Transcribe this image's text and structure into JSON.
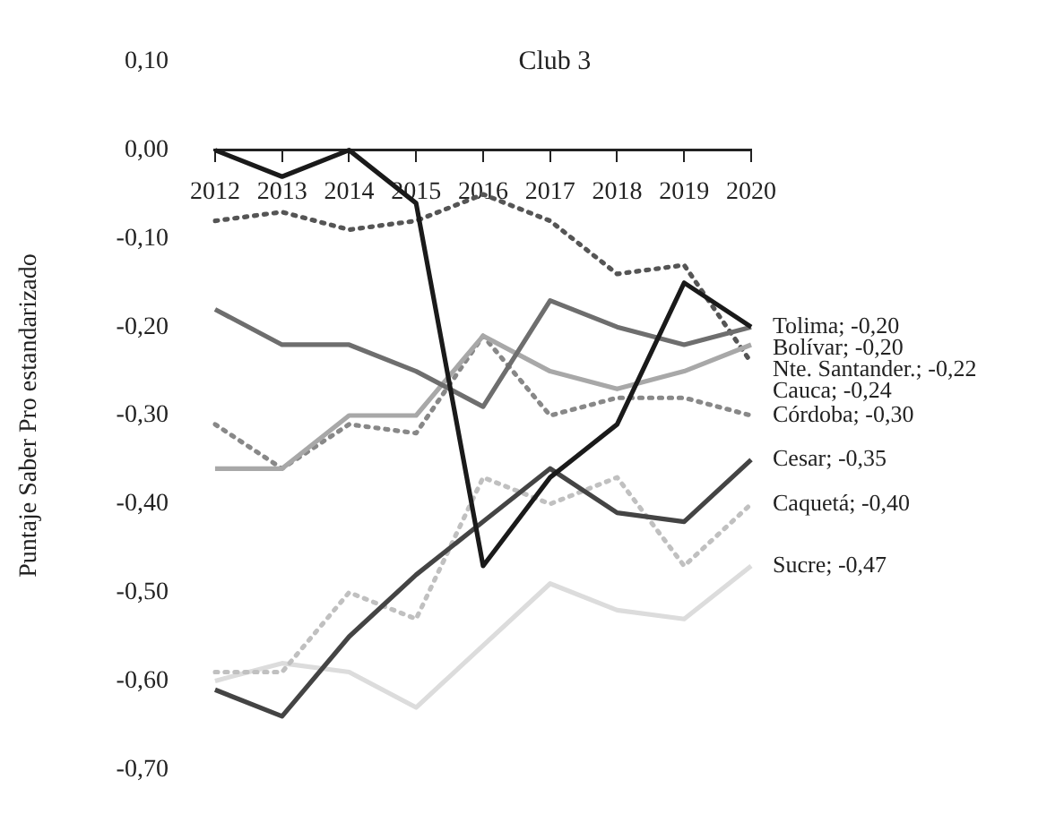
{
  "chart_data": {
    "type": "line",
    "title": "Club 3",
    "ylabel": "Puntaje Saber Pro estandarizado",
    "categories": [
      "2012",
      "2013",
      "2014",
      "2015",
      "2016",
      "2017",
      "2018",
      "2019",
      "2020"
    ],
    "ylim": [
      -0.7,
      0.1
    ],
    "yticks": [
      {
        "value": 0.1,
        "label": "0,10"
      },
      {
        "value": 0,
        "label": "0,00"
      },
      {
        "value": -0.1,
        "label": "-0,10"
      },
      {
        "value": -0.2,
        "label": "-0,20"
      },
      {
        "value": -0.3,
        "label": "-0,30"
      },
      {
        "value": -0.4,
        "label": "-0,40"
      },
      {
        "value": -0.5,
        "label": "-0,50"
      },
      {
        "value": -0.6,
        "label": "-0,60"
      },
      {
        "value": -0.7,
        "label": "-0,70"
      }
    ],
    "grid": false,
    "legend": false,
    "marker": "none",
    "series": [
      {
        "name": "Tolima; -0,20",
        "color": "#1a1a1a",
        "line_style": "solid",
        "values": [
          0.0,
          -0.03,
          0.0,
          -0.06,
          -0.47,
          -0.37,
          -0.31,
          -0.15,
          -0.2
        ]
      },
      {
        "name": "Bolívar; -0,20",
        "color": "#6e6e6e",
        "line_style": "solid",
        "values": [
          -0.18,
          -0.22,
          -0.22,
          -0.25,
          -0.29,
          -0.17,
          -0.2,
          -0.22,
          -0.2
        ]
      },
      {
        "name": "Nte. Santander.; -0,22",
        "color": "#a8a8a8",
        "line_style": "solid",
        "values": [
          -0.36,
          -0.36,
          -0.3,
          -0.3,
          -0.21,
          -0.25,
          -0.27,
          -0.25,
          -0.22
        ]
      },
      {
        "name": "Cauca; -0,24",
        "color": "#555555",
        "line_style": "dotted",
        "values": [
          -0.08,
          -0.07,
          -0.09,
          -0.08,
          -0.05,
          -0.08,
          -0.14,
          -0.13,
          -0.24
        ]
      },
      {
        "name": "Córdoba; -0,30",
        "color": "#888888",
        "line_style": "dotted",
        "values": [
          -0.31,
          -0.36,
          -0.31,
          -0.32,
          -0.21,
          -0.3,
          -0.28,
          -0.28,
          -0.3
        ]
      },
      {
        "name": "Cesar; -0,35",
        "color": "#444444",
        "line_style": "solid",
        "values": [
          -0.61,
          -0.64,
          -0.55,
          -0.48,
          -0.42,
          -0.36,
          -0.41,
          -0.42,
          -0.35
        ]
      },
      {
        "name": "Caquetá; -0,40",
        "color": "#c0c0c0",
        "line_style": "dotted",
        "values": [
          -0.59,
          -0.59,
          -0.5,
          -0.53,
          -0.37,
          -0.4,
          -0.37,
          -0.47,
          -0.4
        ]
      },
      {
        "name": "Sucre; -0,47",
        "color": "#dcdcdc",
        "line_style": "solid",
        "values": [
          -0.6,
          -0.58,
          -0.59,
          -0.63,
          -0.56,
          -0.49,
          -0.52,
          -0.53,
          -0.47
        ]
      }
    ]
  }
}
